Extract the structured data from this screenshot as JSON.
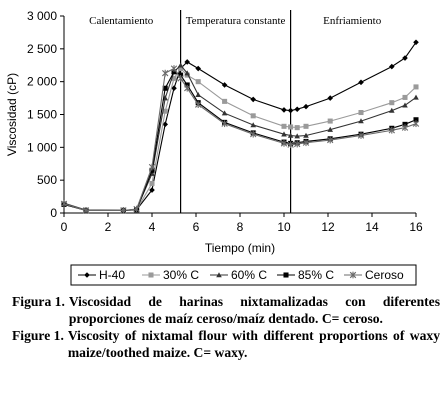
{
  "chart_data": {
    "type": "line",
    "xlabel": "Tiempo (min)",
    "ylabel": "Viscosidad (cP)",
    "xlim": [
      0,
      16
    ],
    "ylim": [
      0,
      3000
    ],
    "xticks": [
      0,
      2,
      4,
      6,
      8,
      10,
      12,
      14,
      16
    ],
    "yticks": [
      0,
      500,
      1000,
      1500,
      2000,
      2500,
      3000
    ],
    "ytick_labels": [
      "0",
      "500",
      "1 000",
      "1 500",
      "2 000",
      "2 500",
      "3 000"
    ],
    "grid": false,
    "legend_position": "bottom",
    "phase_boundaries": [
      5.3,
      10.3
    ],
    "phases": [
      {
        "label": "Calentamiento",
        "x": 2.6
      },
      {
        "label": "Temperatura constante",
        "x": 7.8
      },
      {
        "label": "Enfriamiento",
        "x": 13.1
      }
    ],
    "series": [
      {
        "name": "H-40",
        "marker": "diamond",
        "color": "#000000",
        "x": [
          0,
          1,
          2.7,
          3.3,
          4,
          4.6,
          5.0,
          5.3,
          5.6,
          6.1,
          7.3,
          8.6,
          10.0,
          10.3,
          10.6,
          11.0,
          12.1,
          13.5,
          14.9,
          15.5,
          16
        ],
        "y": [
          130,
          45,
          40,
          50,
          350,
          1350,
          1900,
          2200,
          2300,
          2200,
          1950,
          1730,
          1570,
          1560,
          1580,
          1620,
          1750,
          1990,
          2230,
          2360,
          2600
        ]
      },
      {
        "name": "30% C",
        "marker": "square",
        "color": "#9a9a9a",
        "x": [
          0,
          1,
          2.7,
          3.3,
          4,
          4.6,
          5.0,
          5.3,
          5.6,
          6.1,
          7.3,
          8.6,
          10.0,
          10.3,
          10.6,
          11.0,
          12.1,
          13.5,
          14.9,
          15.5,
          16
        ],
        "y": [
          140,
          40,
          40,
          50,
          450,
          1550,
          2050,
          2200,
          2100,
          2000,
          1700,
          1480,
          1320,
          1310,
          1300,
          1320,
          1400,
          1530,
          1680,
          1760,
          1920
        ]
      },
      {
        "name": "60% C",
        "marker": "triangle",
        "color": "#333333",
        "x": [
          0,
          1,
          2.7,
          3.3,
          4,
          4.6,
          5.0,
          5.3,
          5.6,
          6.1,
          7.3,
          8.6,
          10.0,
          10.3,
          10.6,
          11.0,
          12.1,
          13.5,
          14.9,
          15.5,
          16
        ],
        "y": [
          150,
          45,
          40,
          55,
          600,
          1750,
          2150,
          2250,
          2130,
          1800,
          1520,
          1340,
          1200,
          1180,
          1170,
          1180,
          1270,
          1400,
          1560,
          1640,
          1760
        ]
      },
      {
        "name": "85% C",
        "marker": "square",
        "color": "#000000",
        "x": [
          0,
          1,
          2.7,
          3.3,
          4,
          4.6,
          5.0,
          5.3,
          5.6,
          6.1,
          7.3,
          8.6,
          10.0,
          10.3,
          10.6,
          11.0,
          12.1,
          13.5,
          14.9,
          15.5,
          16
        ],
        "y": [
          130,
          40,
          40,
          50,
          650,
          1900,
          2150,
          2100,
          1950,
          1680,
          1380,
          1220,
          1080,
          1060,
          1070,
          1090,
          1130,
          1200,
          1290,
          1350,
          1420
        ]
      },
      {
        "name": "Ceroso",
        "marker": "star",
        "color": "#6b6b6b",
        "x": [
          0,
          1,
          2.7,
          3.3,
          4,
          4.6,
          5.0,
          5.3,
          5.6,
          6.1,
          7.3,
          8.6,
          10.0,
          10.3,
          10.6,
          11.0,
          12.1,
          13.5,
          14.9,
          15.5,
          16
        ],
        "y": [
          140,
          40,
          40,
          60,
          700,
          2130,
          2200,
          2050,
          1900,
          1650,
          1360,
          1200,
          1060,
          1040,
          1050,
          1070,
          1110,
          1180,
          1260,
          1300,
          1360
        ]
      }
    ]
  },
  "caption": {
    "es_label": "Figura 1.",
    "es_text": "Viscosidad de harinas nixtamalizadas con diferentes proporciones de maíz ceroso/maíz dentado. C= ceroso.",
    "en_label": "Figure 1.",
    "en_text": "Viscosity of nixtamal flour with different proportions of waxy maize/toothed maize. C= waxy."
  }
}
